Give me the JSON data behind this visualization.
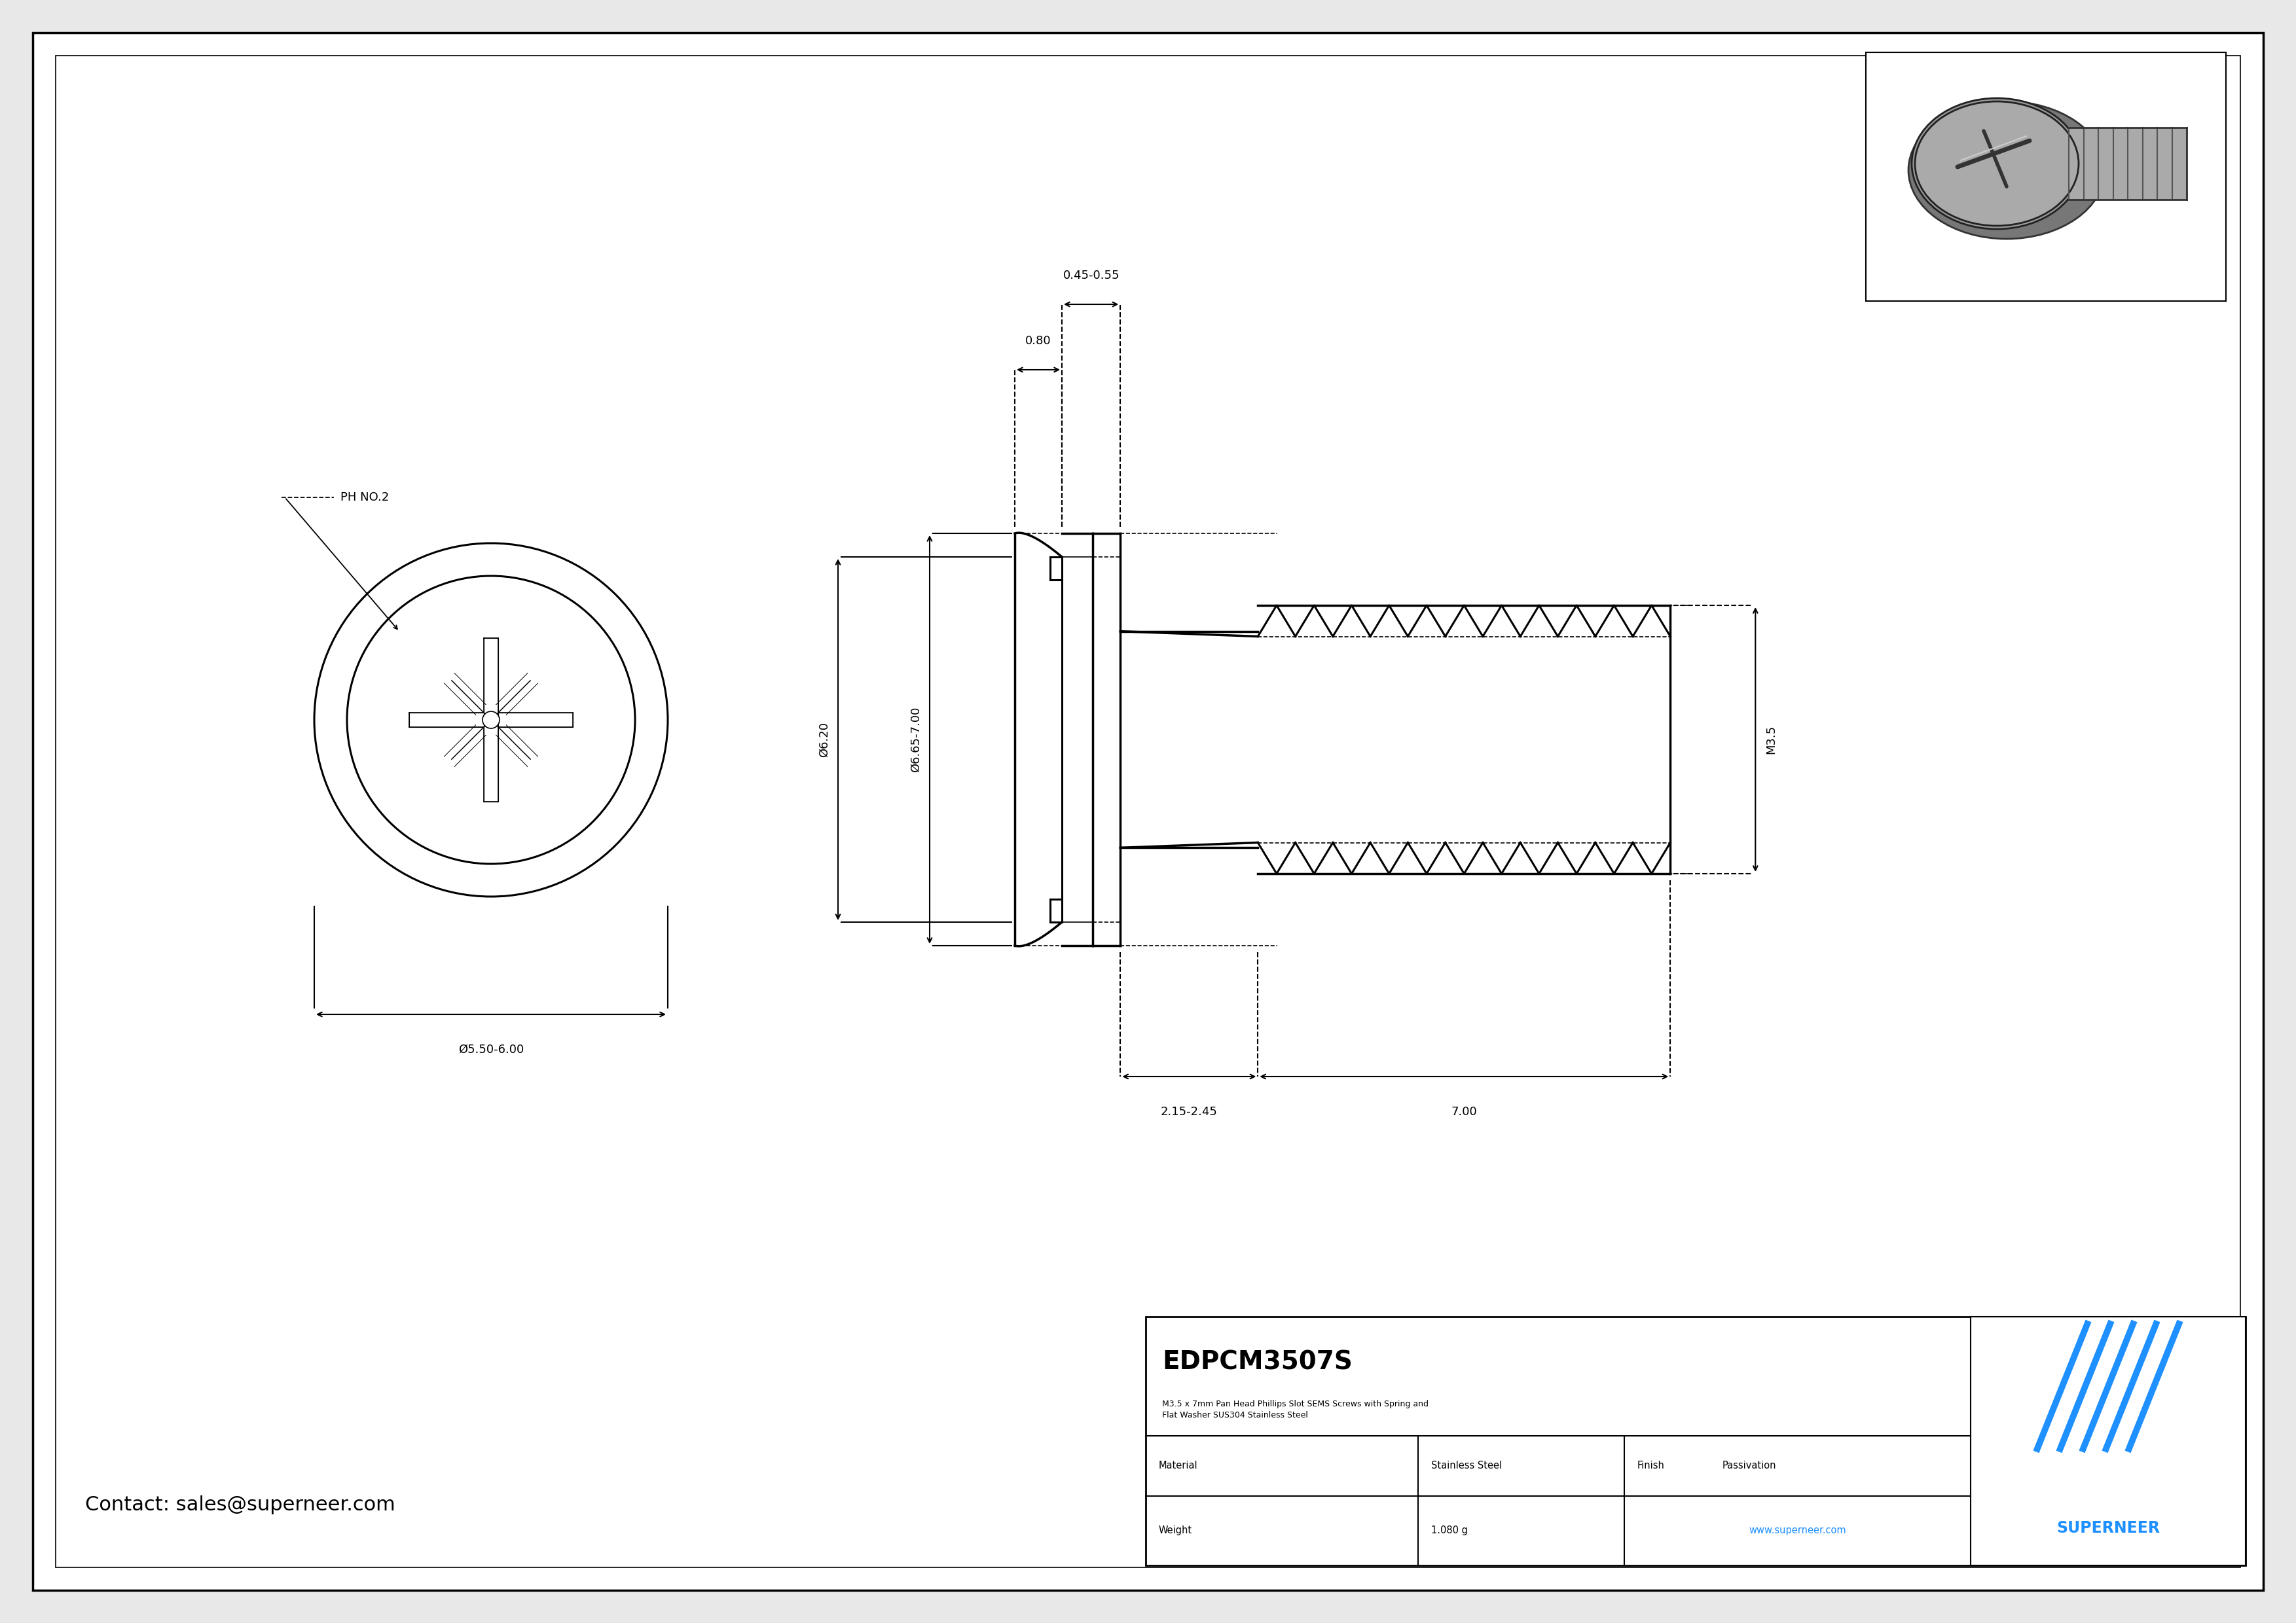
{
  "bg_color": "#e8e8e8",
  "drawing_bg": "#ffffff",
  "line_color": "#000000",
  "blue_color": "#1e90ff",
  "title_text": "EDPCM3507S",
  "subtitle_text": "M3.5 x 7mm Pan Head Phillips Slot SEMS Screws with Spring and\nFlat Washer SUS304 Stainless Steel",
  "material_label": "Material",
  "material_value": "Stainless Steel",
  "finish_label": "Finish",
  "finish_value": "Passivation",
  "weight_label": "Weight",
  "weight_value": "1.080 g",
  "website": "www.superneer.com",
  "contact": "Contact: sales@superneer.com",
  "ph_label": "PH NO.2",
  "dim_d_head": "Ø5.50-6.00",
  "dim_d1": "Ø6.65-7.00",
  "dim_d2": "Ø6.20",
  "dim_h": "0.80",
  "dim_washer_t": "0.45-0.55",
  "dim_shank": "2.15-2.45",
  "dim_thread": "7.00",
  "dim_thread_d": "M3.5",
  "superneer_color": "#1e90ff"
}
